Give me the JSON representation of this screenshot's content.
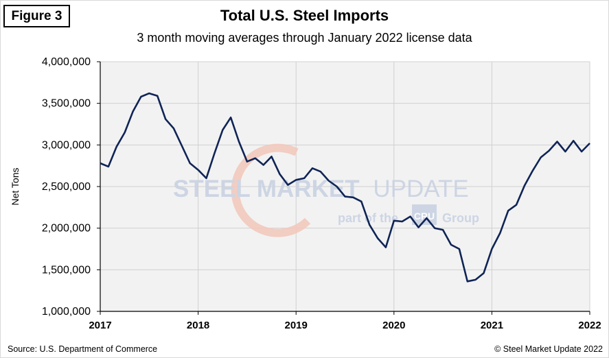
{
  "figure_label": "Figure 3",
  "source": "Source: U.S. Department of Commerce",
  "copyright": "© Steel Market Update 2022",
  "watermark": {
    "line1_bold": "STEEL MARKET",
    "line1_light": "UPDATE",
    "line2_pre": "part of the",
    "line2_logo": "CRU",
    "line2_post": "Group",
    "color_main": "#c9d2e3",
    "color_arc": "#f3c9bd"
  },
  "colors": {
    "line": "#0f2456",
    "plot_bg": "#f2f2f2",
    "grid": "#d0d0d0"
  },
  "chart_data": {
    "type": "line",
    "title": "Total U.S. Steel Imports",
    "subtitle": "3 month moving averages through January 2022 license data",
    "xlabel": "",
    "ylabel": "Net Tons",
    "xlim": [
      2017,
      2022
    ],
    "ylim": [
      1000000,
      4000000
    ],
    "grid": true,
    "legend": "none",
    "x_ticks": [
      2017,
      2018,
      2019,
      2020,
      2021,
      2022
    ],
    "x_tick_labels": [
      "2017",
      "2018",
      "2019",
      "2020",
      "2021",
      "2022"
    ],
    "y_ticks": [
      1000000,
      1500000,
      2000000,
      2500000,
      3000000,
      3500000,
      4000000
    ],
    "y_tick_labels": [
      "1,000,000",
      "1,500,000",
      "2,000,000",
      "2,500,000",
      "3,000,000",
      "3,500,000",
      "4,000,000"
    ],
    "series": [
      {
        "name": "",
        "x": [
          "2017-01",
          "2017-02",
          "2017-03",
          "2017-04",
          "2017-05",
          "2017-06",
          "2017-07",
          "2017-08",
          "2017-09",
          "2017-10",
          "2017-11",
          "2017-12",
          "2018-01",
          "2018-02",
          "2018-03",
          "2018-04",
          "2018-05",
          "2018-06",
          "2018-07",
          "2018-08",
          "2018-09",
          "2018-10",
          "2018-11",
          "2018-12",
          "2019-01",
          "2019-02",
          "2019-03",
          "2019-04",
          "2019-05",
          "2019-06",
          "2019-07",
          "2019-08",
          "2019-09",
          "2019-10",
          "2019-11",
          "2019-12",
          "2020-01",
          "2020-02",
          "2020-03",
          "2020-04",
          "2020-05",
          "2020-06",
          "2020-07",
          "2020-08",
          "2020-09",
          "2020-10",
          "2020-11",
          "2020-12",
          "2021-01",
          "2021-02",
          "2021-03",
          "2021-04",
          "2021-05",
          "2021-06",
          "2021-07",
          "2021-08",
          "2021-09",
          "2021-10",
          "2021-11",
          "2021-12",
          "2022-01"
        ],
        "values": [
          2780000,
          2740000,
          2980000,
          3150000,
          3400000,
          3580000,
          3620000,
          3590000,
          3310000,
          3200000,
          2990000,
          2780000,
          2700000,
          2600000,
          2900000,
          3180000,
          3330000,
          3040000,
          2800000,
          2840000,
          2760000,
          2860000,
          2650000,
          2520000,
          2580000,
          2600000,
          2720000,
          2680000,
          2570000,
          2500000,
          2380000,
          2370000,
          2320000,
          2040000,
          1880000,
          1770000,
          2090000,
          2080000,
          2140000,
          2010000,
          2120000,
          2000000,
          1980000,
          1800000,
          1750000,
          1360000,
          1380000,
          1460000,
          1750000,
          1940000,
          2210000,
          2280000,
          2510000,
          2690000,
          2850000,
          2930000,
          3040000,
          2920000,
          3050000,
          2920000,
          3020000
        ]
      }
    ]
  }
}
